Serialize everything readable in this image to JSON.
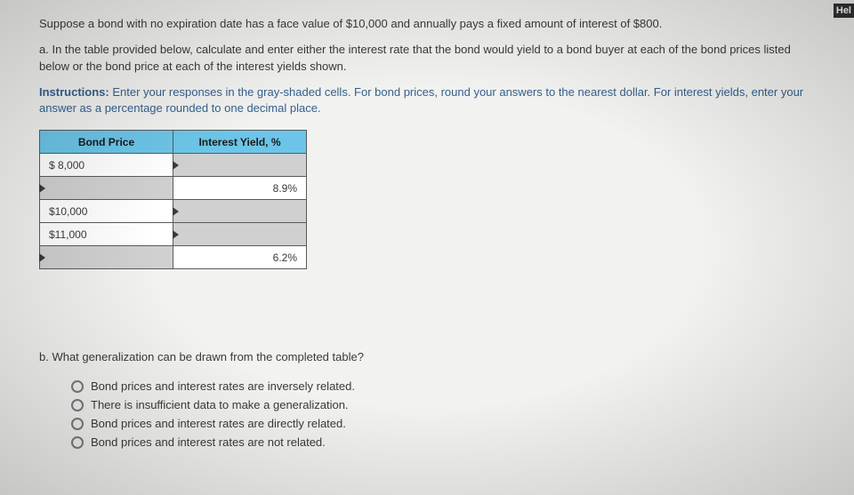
{
  "help_label": "Hel",
  "intro_text": "Suppose a bond with no expiration date has a face value of $10,000 and annually pays a fixed amount of interest of $800.",
  "part_a_text": "a. In the table provided below, calculate and enter either the interest rate that the bond would yield to a bond buyer at each of the bond prices listed below or the bond price at each of the interest yields shown.",
  "instructions_label": "Instructions:",
  "instructions_text": " Enter your responses in the gray-shaded cells. For bond prices, round your answers to the nearest dollar. For interest yields, enter your answer as a percentage rounded to one decimal place.",
  "table": {
    "headers": {
      "price": "Bond Price",
      "yield": "Interest Yield, %"
    },
    "rows": [
      {
        "price": "$ 8,000",
        "yield": "",
        "price_editable": false,
        "yield_editable": true
      },
      {
        "price": "",
        "yield": "8.9%",
        "price_editable": true,
        "yield_editable": false
      },
      {
        "price": "$10,000",
        "yield": "",
        "price_editable": false,
        "yield_editable": true
      },
      {
        "price": "$11,000",
        "yield": "",
        "price_editable": false,
        "yield_editable": true
      },
      {
        "price": "",
        "yield": "6.2%",
        "price_editable": true,
        "yield_editable": false
      }
    ]
  },
  "part_b_text": "b. What generalization can be drawn from the completed table?",
  "options": [
    "Bond prices and interest rates are inversely related.",
    "There is insufficient data to make a generalization.",
    "Bond prices and interest rates are directly related.",
    "Bond prices and interest rates are not related."
  ],
  "colors": {
    "page_bg": "#f2f2f0",
    "text": "#3a3a3a",
    "instruction_text": "#34608f",
    "header_bg": "#6cc5e8",
    "editable_bg": "#d0d0d0",
    "border": "#5a5a5a"
  }
}
